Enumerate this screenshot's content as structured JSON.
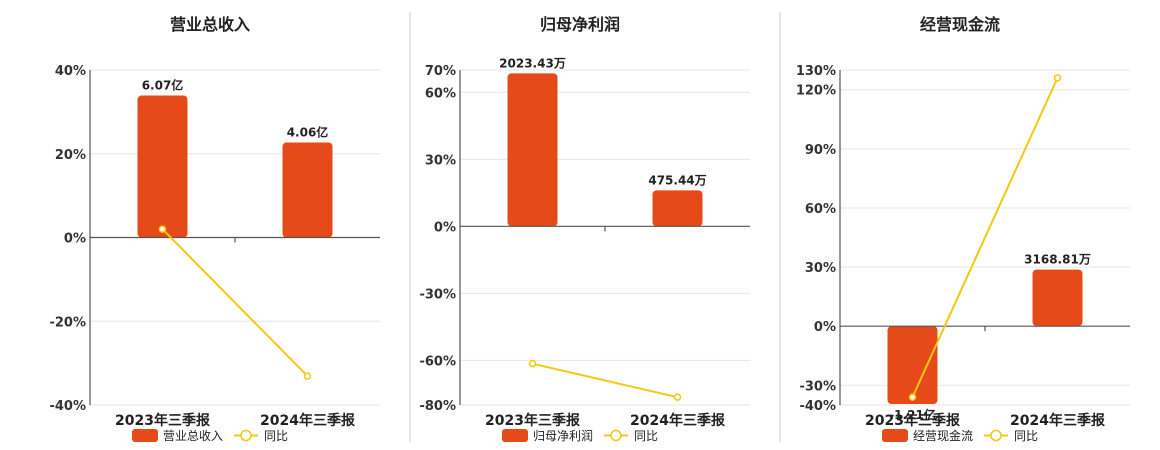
{
  "colors": {
    "bar": "#E64A19",
    "line": "#F2C811",
    "grid": "#E6E6E6",
    "axis": "#555555"
  },
  "legend": {
    "line_label": "同比"
  },
  "chart_data": [
    {
      "type": "bar",
      "title": "营业总收入",
      "categories": [
        "2023年三季报",
        "2024年三季报"
      ],
      "series": [
        {
          "name": "营业总收入",
          "kind": "bar",
          "values": [
            33.9,
            22.7
          ],
          "labels": [
            "6.07亿",
            "4.06亿"
          ]
        },
        {
          "name": "同比",
          "kind": "line",
          "values": [
            2.0,
            -33.1
          ]
        }
      ],
      "yticks": [
        40,
        20,
        0,
        -20,
        -40
      ],
      "yticklabels": [
        "40%",
        "20%",
        "0%",
        "-20%",
        "-40%"
      ],
      "ylim": [
        -40,
        40
      ],
      "legend_position": "bottom"
    },
    {
      "type": "bar",
      "title": "归母净利润",
      "categories": [
        "2023年三季报",
        "2024年三季报"
      ],
      "series": [
        {
          "name": "归母净利润",
          "kind": "bar",
          "values": [
            68.5,
            16.1
          ],
          "labels": [
            "2023.43万",
            "475.44万"
          ]
        },
        {
          "name": "同比",
          "kind": "line",
          "values": [
            -61.5,
            -76.5
          ]
        }
      ],
      "yticks": [
        70,
        60,
        30,
        0,
        -30,
        -60,
        -80
      ],
      "yticklabels": [
        "70%",
        "60%",
        "30%",
        "0%",
        "-30%",
        "-60%",
        "-80%"
      ],
      "ylim": [
        -80,
        70
      ],
      "legend_position": "bottom"
    },
    {
      "type": "bar",
      "title": "经营现金流",
      "categories": [
        "2023年三季报",
        "2024年三季报"
      ],
      "series": [
        {
          "name": "经营现金流",
          "kind": "bar",
          "values": [
            -39.5,
            28.7
          ],
          "labels": [
            "-1.21亿",
            "3168.81万"
          ]
        },
        {
          "name": "同比",
          "kind": "line",
          "values": [
            -36.0,
            126.0
          ]
        }
      ],
      "yticks": [
        130,
        120,
        90,
        60,
        30,
        0,
        -30,
        -40
      ],
      "yticklabels": [
        "130%",
        "120%",
        "90%",
        "60%",
        "30%",
        "0%",
        "-30%",
        "-40%"
      ],
      "ylim": [
        -40,
        130
      ],
      "legend_position": "bottom"
    }
  ]
}
